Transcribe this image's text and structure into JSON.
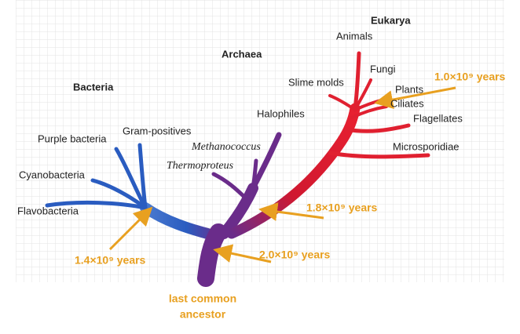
{
  "domains": [
    {
      "label": "Bacteria",
      "members": [
        "Purple bacteria",
        "Gram-positives",
        "Cyanobacteria",
        "Flavobacteria"
      ]
    },
    {
      "label": "Archaea",
      "members": [
        "Halophiles",
        "Methanococcus",
        "Thermoproteus"
      ]
    },
    {
      "label": "Eukarya",
      "members": [
        "Animals",
        "Fungi",
        "Slime molds",
        "Plants",
        "Ciliates",
        "Flagellates",
        "Microsporidiae"
      ]
    }
  ],
  "times": [
    "1.0×10⁹ years",
    "1.8×10⁹ years",
    "2.0×10⁹ years",
    "1.4×10⁹ years"
  ],
  "root_label": [
    "last common",
    "ancestor"
  ]
}
